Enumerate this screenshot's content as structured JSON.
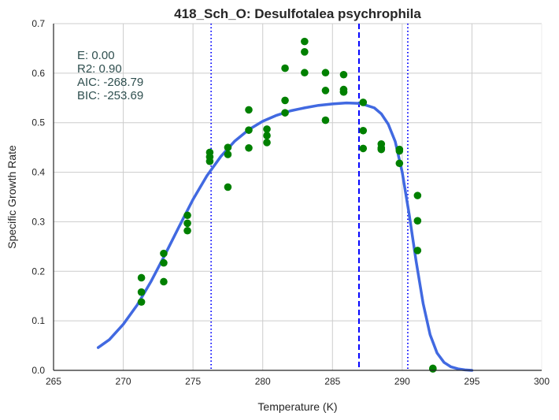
{
  "chart_data": {
    "type": "scatter",
    "title": "418_Sch_O: Desulfotalea psychrophila",
    "xlabel": "Temperature (K)",
    "ylabel": "Specific Growth Rate",
    "xlim": [
      265,
      300
    ],
    "ylim": [
      0.0,
      0.7
    ],
    "x_ticks": [
      "265",
      "270",
      "275",
      "280",
      "285",
      "290",
      "295",
      "300"
    ],
    "y_ticks": [
      "0.0",
      "0.1",
      "0.2",
      "0.3",
      "0.4",
      "0.5",
      "0.6",
      "0.7"
    ],
    "grid": true,
    "annotations": [
      "E:  0.00",
      "R2:  0.90",
      "AIC: -268.79",
      "BIC: -253.69"
    ],
    "colors": {
      "points": "#008000",
      "fit": "#4169e1",
      "vlines": "#0000ff"
    },
    "vertical_lines": [
      {
        "x": 276.3,
        "style": "dotted"
      },
      {
        "x": 286.9,
        "style": "dashed"
      },
      {
        "x": 290.4,
        "style": "dotted"
      }
    ],
    "series": [
      {
        "type": "scatter",
        "x": [
          271.3,
          271.3,
          271.3,
          272.9,
          272.9,
          272.9,
          274.6,
          274.6,
          274.6,
          276.2,
          276.2,
          276.2,
          277.5,
          277.5,
          277.5,
          279.0,
          279.0,
          279.0,
          280.3,
          280.3,
          280.3,
          281.6,
          281.6,
          281.6,
          283.0,
          283.0,
          283.0,
          284.5,
          284.5,
          284.5,
          285.8,
          285.8,
          285.8,
          285.8,
          287.2,
          287.2,
          287.2,
          288.5,
          288.5,
          288.5,
          289.8,
          289.8,
          289.8,
          291.1,
          291.1,
          291.1,
          292.2,
          292.2
        ],
        "y": [
          0.187,
          0.158,
          0.138,
          0.236,
          0.217,
          0.179,
          0.313,
          0.297,
          0.282,
          0.44,
          0.431,
          0.422,
          0.45,
          0.436,
          0.37,
          0.526,
          0.485,
          0.449,
          0.487,
          0.474,
          0.46,
          0.61,
          0.545,
          0.52,
          0.664,
          0.643,
          0.601,
          0.601,
          0.565,
          0.505,
          0.597,
          0.567,
          0.562,
          0.562,
          0.541,
          0.484,
          0.448,
          0.457,
          0.449,
          0.446,
          0.446,
          0.443,
          0.418,
          0.353,
          0.302,
          0.242,
          0.004,
          0.003
        ]
      },
      {
        "type": "line",
        "x": [
          268.2,
          269.0,
          270.0,
          271.0,
          272.0,
          273.0,
          274.0,
          275.0,
          276.0,
          277.0,
          278.0,
          279.0,
          280.0,
          281.0,
          282.0,
          283.0,
          284.0,
          285.0,
          286.0,
          287.0,
          288.0,
          288.5,
          289.0,
          289.5,
          290.0,
          290.5,
          291.0,
          291.5,
          292.0,
          292.5,
          293.0,
          293.5,
          294.0,
          294.5,
          295.0
        ],
        "y": [
          0.046,
          0.062,
          0.093,
          0.132,
          0.18,
          0.234,
          0.29,
          0.345,
          0.393,
          0.432,
          0.463,
          0.486,
          0.503,
          0.515,
          0.524,
          0.53,
          0.535,
          0.538,
          0.54,
          0.539,
          0.53,
          0.518,
          0.497,
          0.462,
          0.4,
          0.315,
          0.22,
          0.135,
          0.072,
          0.035,
          0.016,
          0.007,
          0.003,
          0.001,
          0.0
        ]
      }
    ]
  }
}
